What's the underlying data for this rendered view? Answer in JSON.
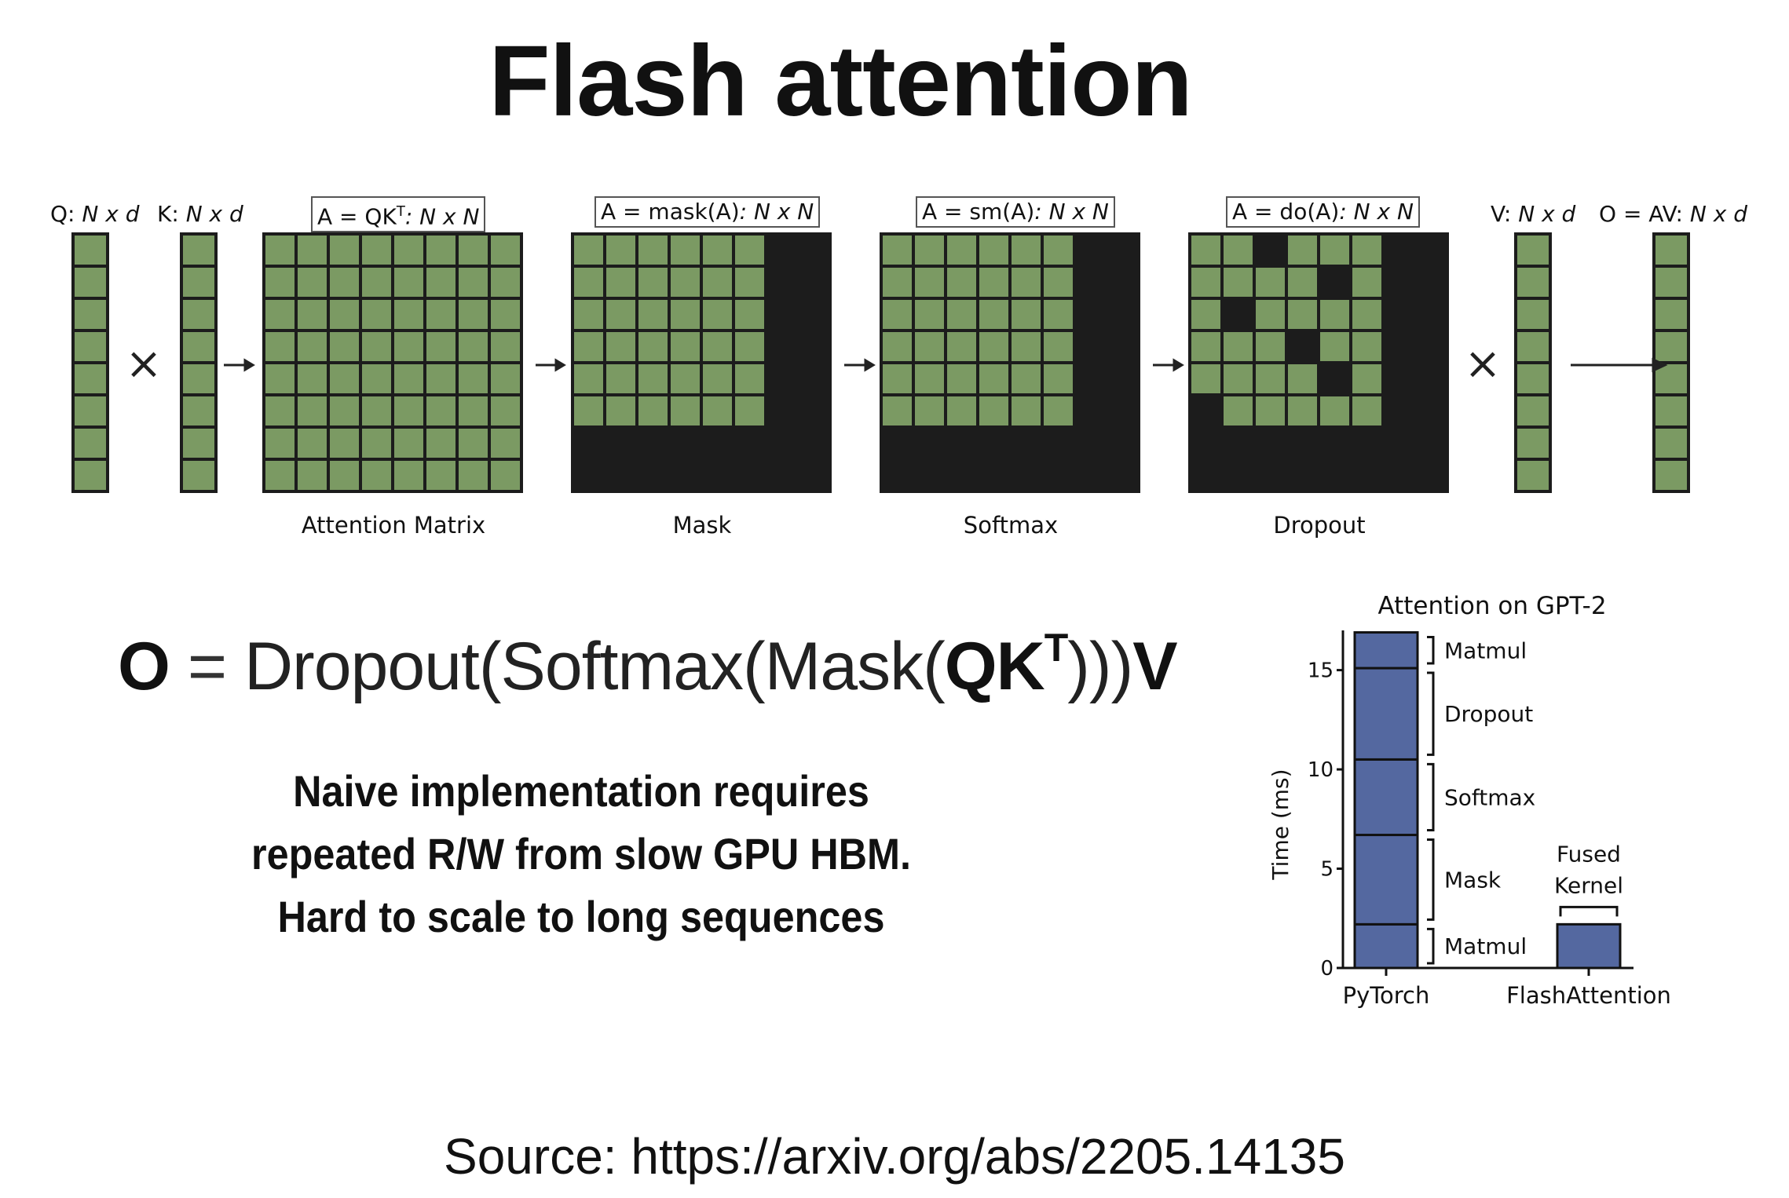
{
  "title": "Flash attention",
  "diagram": {
    "q_label": {
      "name": "Q:",
      "dims": "N x d"
    },
    "k_label": {
      "name": "K:",
      "dims": "N x d"
    },
    "v_label": {
      "name": "V:",
      "dims": "N x d"
    },
    "o_label": {
      "name": "O = AV:",
      "dims": "N x d"
    },
    "times_symbol": "×",
    "matrices": [
      {
        "formula": "A = QK",
        "sup": "T",
        "dims": ": N x N",
        "caption": "Attention Matrix"
      },
      {
        "formula": "A = mask(A)",
        "sup": "",
        "dims": ": N x N",
        "caption": "Mask"
      },
      {
        "formula": "A = sm(A)",
        "sup": "",
        "dims": ": N x N",
        "caption": "Softmax"
      },
      {
        "formula": "A = do(A)",
        "sup": "",
        "dims": ": N x N",
        "caption": "Dropout"
      }
    ],
    "colors": {
      "cell": "#7b9a63",
      "dark": "#1c1c1c"
    }
  },
  "equation": {
    "output": "O",
    "equals": "=",
    "text1": "Dropout(Softmax(Mask(",
    "qk": "QK",
    "sup": "T",
    "text2": ")))",
    "v": "V"
  },
  "notes": [
    "Naive implementation requires",
    "repeated R/W from slow GPU HBM.",
    "Hard to scale to long sequences"
  ],
  "chart_data": {
    "type": "bar",
    "title": "Attention on GPT-2",
    "ylabel": "Time (ms)",
    "categories": [
      "PyTorch",
      "FlashAttention"
    ],
    "ylim": [
      0,
      17
    ],
    "yticks": [
      0,
      5,
      10,
      15
    ],
    "stacks": {
      "PyTorch": [
        {
          "name": "Matmul",
          "value": 2.2
        },
        {
          "name": "Mask",
          "value": 4.5
        },
        {
          "name": "Softmax",
          "value": 3.8
        },
        {
          "name": "Dropout",
          "value": 4.6
        },
        {
          "name": "Matmul",
          "value": 1.8
        }
      ],
      "FlashAttention": [
        {
          "name": "Fused Kernel",
          "value": 2.2
        }
      ]
    },
    "fused_label": [
      "Fused",
      "Kernel"
    ],
    "bar_color": "#5468a0"
  },
  "source": "Source: https://arxiv.org/abs/2205.14135"
}
